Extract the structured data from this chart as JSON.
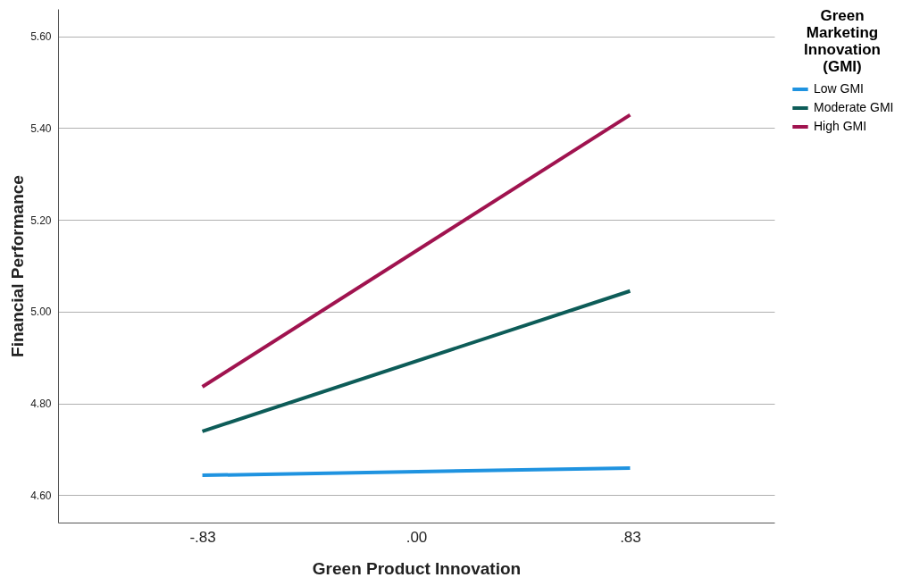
{
  "chart_data": {
    "type": "line",
    "xlabel": "Green Product Innovation",
    "ylabel": "Financial Performance",
    "legend_title": "Green Marketing Innovation (GMI)",
    "x": [
      -0.83,
      0.83
    ],
    "series": [
      {
        "name": "Low GMI",
        "color": "#1f93e0",
        "values": [
          4.643,
          4.659
        ]
      },
      {
        "name": "Moderate GMI",
        "color": "#0d5c58",
        "values": [
          4.739,
          5.045
        ]
      },
      {
        "name": "High GMI",
        "color": "#a0134f",
        "values": [
          4.836,
          5.429
        ]
      }
    ],
    "xlim": [
      -1.39,
      1.39
    ],
    "xticks": [
      {
        "value": -0.83,
        "label": "-.83"
      },
      {
        "value": 0,
        "label": ".00"
      },
      {
        "value": 0.83,
        "label": ".83"
      }
    ],
    "ylim": [
      4.54,
      5.66
    ],
    "yticks": [
      {
        "value": 4.6,
        "label": "4.60"
      },
      {
        "value": 4.8,
        "label": "4.80"
      },
      {
        "value": 5.0,
        "label": "5.00"
      },
      {
        "value": 5.2,
        "label": "5.20"
      },
      {
        "value": 5.4,
        "label": "5.40"
      },
      {
        "value": 5.6,
        "label": "5.60"
      }
    ],
    "grid": "y",
    "legend": "top right",
    "marker": "none",
    "line_style": "solid"
  }
}
